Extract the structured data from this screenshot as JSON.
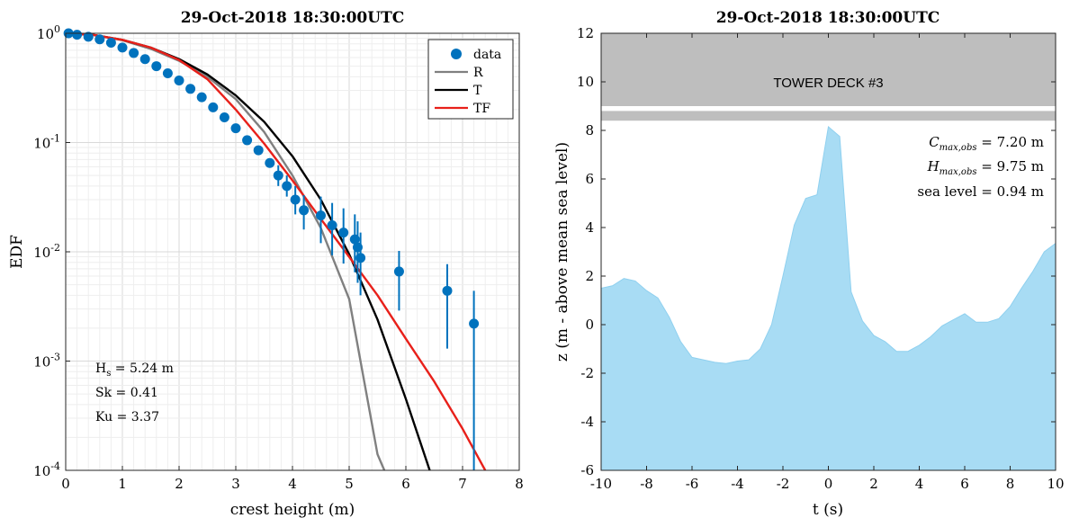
{
  "chart_data": [
    {
      "type": "scatter",
      "title": "29-Oct-2018 18:30:00UTC",
      "xlabel": "crest height (m)",
      "ylabel": "EDF",
      "xlim": [
        0,
        8
      ],
      "ylim": [
        0.0001,
        1
      ],
      "yscale": "log",
      "x_ticks": [
        "0",
        "1",
        "2",
        "3",
        "4",
        "5",
        "6",
        "7",
        "8"
      ],
      "y_ticks": [
        "10^-4",
        "10^-3",
        "10^-2",
        "10^-1",
        "10^0"
      ],
      "grid": true,
      "legend": {
        "position": "top-right",
        "entries": [
          "data",
          "R",
          "T",
          "TF"
        ]
      },
      "colors": {
        "data": "#0072BD",
        "R": "#808080",
        "T": "#000000",
        "TF": "#E8201A"
      },
      "annotations": {
        "hs_prefix": "H",
        "hs_sub": "s",
        "hs_value": " = 5.24 m",
        "sk": "Sk = 0.41",
        "ku": "Ku = 3.37"
      },
      "series": [
        {
          "name": "data",
          "kind": "points",
          "x": [
            0.05,
            0.2,
            0.4,
            0.6,
            0.8,
            1.0,
            1.2,
            1.4,
            1.6,
            1.8,
            2.0,
            2.2,
            2.4,
            2.6,
            2.8,
            3.0,
            3.2,
            3.4,
            3.6,
            3.75,
            3.9,
            4.05,
            4.2,
            4.5,
            4.7,
            4.9,
            5.1,
            5.15,
            5.2,
            5.88,
            6.73,
            7.2
          ],
          "y": [
            1.0,
            0.97,
            0.93,
            0.88,
            0.82,
            0.74,
            0.66,
            0.58,
            0.5,
            0.43,
            0.37,
            0.31,
            0.26,
            0.21,
            0.17,
            0.135,
            0.105,
            0.085,
            0.065,
            0.05,
            0.04,
            0.03,
            0.024,
            0.0215,
            0.0175,
            0.015,
            0.013,
            0.011,
            0.0088,
            0.0066,
            0.0044,
            0.0022
          ],
          "err_low": [
            null,
            null,
            null,
            null,
            null,
            null,
            null,
            null,
            null,
            null,
            null,
            null,
            null,
            null,
            null,
            null,
            null,
            null,
            null,
            0.04,
            0.032,
            0.022,
            0.016,
            0.012,
            0.0093,
            0.0078,
            0.0065,
            0.0052,
            0.004,
            0.0029,
            0.0013,
            0.0001
          ],
          "err_high": [
            null,
            null,
            null,
            null,
            null,
            null,
            null,
            null,
            null,
            null,
            null,
            null,
            null,
            null,
            null,
            null,
            null,
            null,
            null,
            0.062,
            0.05,
            0.04,
            0.033,
            0.032,
            0.028,
            0.025,
            0.022,
            0.019,
            0.015,
            0.0102,
            0.0077,
            0.0044
          ]
        },
        {
          "name": "R",
          "kind": "line",
          "x": [
            0,
            0.5,
            1.0,
            1.5,
            2.0,
            2.5,
            3.0,
            3.5,
            4.0,
            4.5,
            5.0,
            5.5,
            5.62
          ],
          "y": [
            1.0,
            0.965,
            0.865,
            0.72,
            0.56,
            0.4,
            0.25,
            0.125,
            0.05,
            0.0165,
            0.0037,
            0.00014,
            0.0001
          ]
        },
        {
          "name": "T",
          "kind": "line",
          "x": [
            0,
            0.5,
            1.0,
            1.5,
            2.0,
            2.5,
            3.0,
            3.5,
            4.0,
            4.5,
            5.0,
            5.5,
            6.0,
            6.42
          ],
          "y": [
            1.0,
            0.965,
            0.87,
            0.74,
            0.58,
            0.42,
            0.27,
            0.155,
            0.075,
            0.03,
            0.0095,
            0.0024,
            0.00045,
            0.0001
          ]
        },
        {
          "name": "TF",
          "kind": "line",
          "x": [
            0,
            0.5,
            1.0,
            1.5,
            2.0,
            2.5,
            3.0,
            3.5,
            4.0,
            4.5,
            5.0,
            5.5,
            6.0,
            6.5,
            7.0,
            7.4
          ],
          "y": [
            1.0,
            0.965,
            0.87,
            0.74,
            0.57,
            0.38,
            0.2,
            0.098,
            0.045,
            0.02,
            0.009,
            0.004,
            0.0016,
            0.00065,
            0.00024,
            0.0001
          ]
        }
      ]
    },
    {
      "type": "area",
      "title": "29-Oct-2018 18:30:00UTC",
      "xlabel": "t (s)",
      "ylabel": "z (m - above mean sea level)",
      "xlim": [
        -10,
        10
      ],
      "ylim": [
        -6,
        12
      ],
      "x_ticks": [
        "-10",
        "-8",
        "-6",
        "-4",
        "-2",
        "0",
        "2",
        "4",
        "6",
        "8",
        "10"
      ],
      "y_ticks": [
        "-6",
        "-4",
        "-2",
        "0",
        "2",
        "4",
        "6",
        "8",
        "10",
        "12"
      ],
      "grid": false,
      "fill_color": "#A8DCF4",
      "deck": {
        "label": "TOWER DECK #3",
        "y_bottom": 8.4,
        "y_top": 12,
        "band_low": 8.8,
        "band_high": 9.0,
        "color": "#BEBEBE"
      },
      "annotations": {
        "cmax_sym": "C",
        "cmax_sub": "max,obs",
        "cmax_value": " = 7.20 m",
        "hmax_sym": "H",
        "hmax_sub": "max,obs",
        "hmax_value": " = 9.75 m",
        "sea": "sea level = 0.94 m"
      },
      "series": [
        {
          "x": [
            -10,
            -9.5,
            -9,
            -8.5,
            -8,
            -7.5,
            -7,
            -6.5,
            -6,
            -5.5,
            -5,
            -4.5,
            -4,
            -3.5,
            -3,
            -2.5,
            -2,
            -1.5,
            -1,
            -0.5,
            0,
            0.5,
            1,
            1.5,
            2,
            2.5,
            3,
            3.5,
            4,
            4.5,
            5,
            5.5,
            6,
            6.5,
            7,
            7.5,
            8,
            8.5,
            9,
            9.5,
            10
          ],
          "y": [
            1.5,
            1.6,
            1.9,
            1.8,
            1.4,
            1.1,
            0.3,
            -0.7,
            -1.35,
            -1.45,
            -1.55,
            -1.6,
            -1.5,
            -1.45,
            -1.0,
            0.0,
            2.0,
            4.1,
            5.2,
            5.35,
            8.15,
            7.75,
            1.35,
            0.15,
            -0.45,
            -0.7,
            -1.1,
            -1.1,
            -0.85,
            -0.5,
            -0.05,
            0.2,
            0.45,
            0.1,
            0.1,
            0.25,
            0.75,
            1.5,
            2.2,
            3.0,
            3.35
          ]
        }
      ]
    }
  ]
}
